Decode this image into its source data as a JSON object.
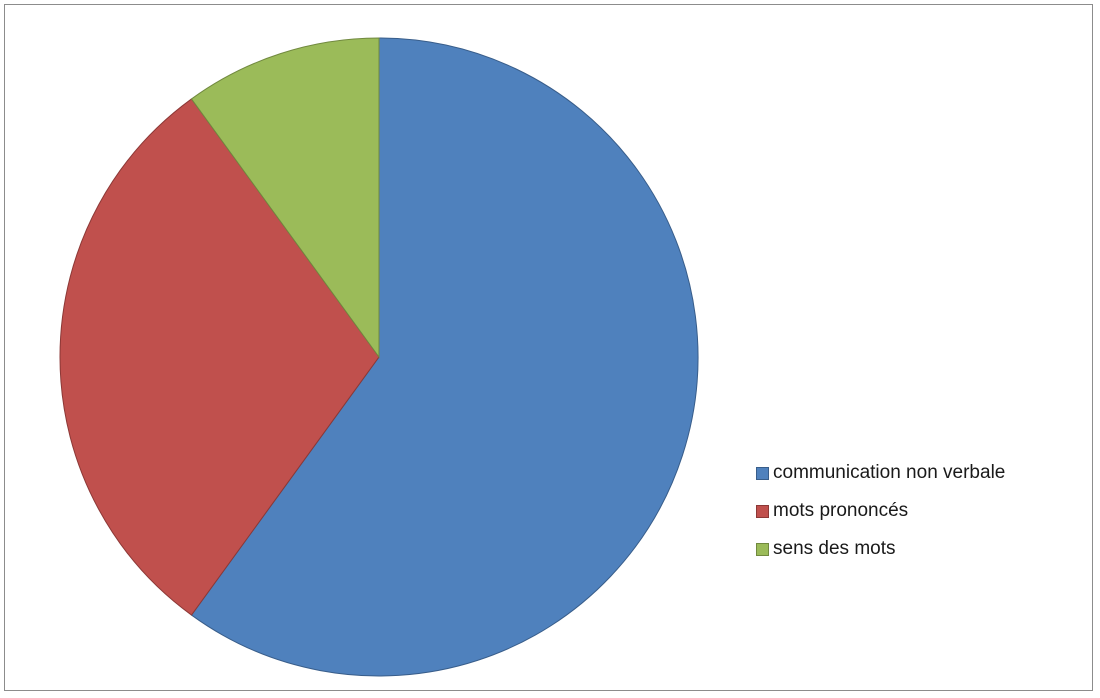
{
  "chart_data": {
    "type": "pie",
    "title": "",
    "slices": [
      {
        "label": "communication non verbale",
        "value": 60,
        "color": "#4F81BD",
        "stroke": "#385D8A"
      },
      {
        "label": "mots prononcés",
        "value": 30,
        "color": "#C0504D",
        "stroke": "#8C3836"
      },
      {
        "label": "sens des mots",
        "value": 10,
        "color": "#9BBB59",
        "stroke": "#71893F"
      }
    ],
    "legend": {
      "placement": "right",
      "items": [
        "communication non verbale",
        "mots prononcés",
        "sens des mots"
      ]
    },
    "start_angle": "12 o'clock",
    "direction": "clockwise"
  }
}
